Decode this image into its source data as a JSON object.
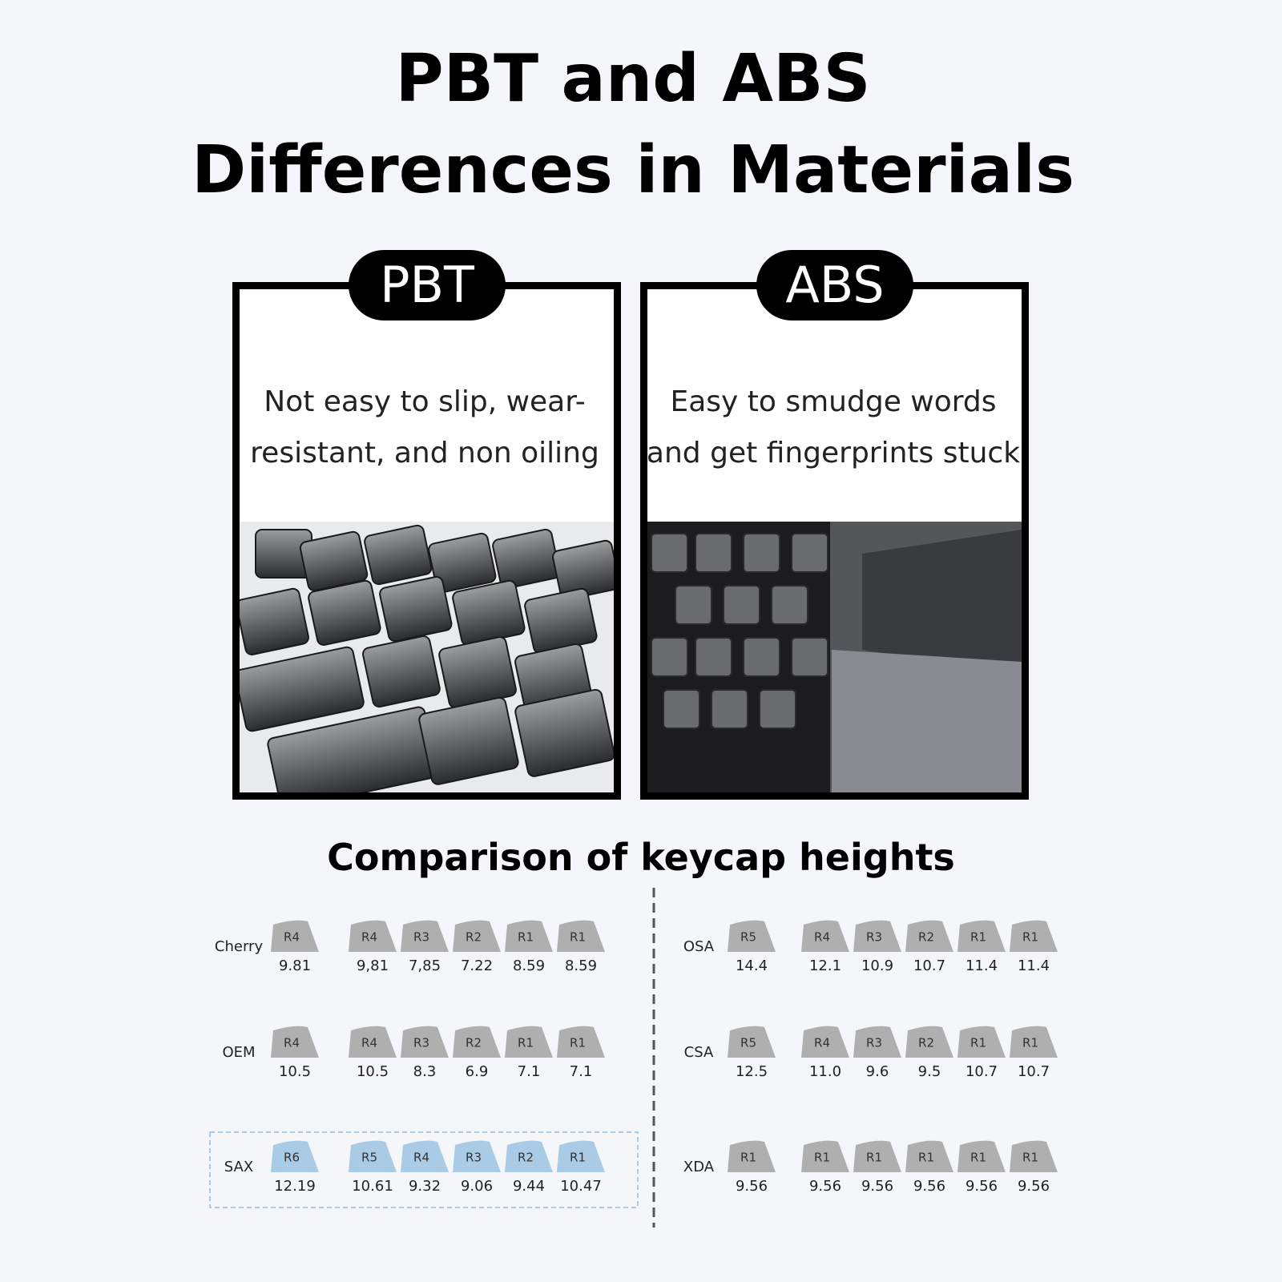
{
  "title": [
    "PBT and ABS",
    "Differences in Materials"
  ],
  "panels": [
    {
      "badge": "PBT",
      "text": "Not easy to slip, wear-resistant, and non oiling"
    },
    {
      "badge": "ABS",
      "text": "Easy to smudge words and get fingerprints stuck"
    }
  ],
  "comparison": {
    "title": "Comparison of keycap heights",
    "profiles": [
      {
        "name": "Cherry",
        "color": "#b0afb0",
        "keys": [
          {
            "row": "R4",
            "height": "9.81"
          },
          {
            "row": "R4",
            "height": "9,81"
          },
          {
            "row": "R3",
            "height": "7,85"
          },
          {
            "row": "R2",
            "height": "7.22"
          },
          {
            "row": "R1",
            "height": "8.59"
          },
          {
            "row": "R1",
            "height": "8.59"
          }
        ]
      },
      {
        "name": "OEM",
        "color": "#b0afb0",
        "keys": [
          {
            "row": "R4",
            "height": "10.5"
          },
          {
            "row": "R4",
            "height": "10.5"
          },
          {
            "row": "R3",
            "height": "8.3"
          },
          {
            "row": "R2",
            "height": "6.9"
          },
          {
            "row": "R1",
            "height": "7.1"
          },
          {
            "row": "R1",
            "height": "7.1"
          }
        ]
      },
      {
        "name": "SAX",
        "color": "#a9cbe6",
        "highlight": true,
        "keys": [
          {
            "row": "R6",
            "height": "12.19"
          },
          {
            "row": "R5",
            "height": "10.61"
          },
          {
            "row": "R4",
            "height": "9.32"
          },
          {
            "row": "R3",
            "height": "9.06"
          },
          {
            "row": "R2",
            "height": "9.44"
          },
          {
            "row": "R1",
            "height": "10.47"
          }
        ]
      },
      {
        "name": "OSA",
        "color": "#b0afb0",
        "keys": [
          {
            "row": "R5",
            "height": "14.4"
          },
          {
            "row": "R4",
            "height": "12.1"
          },
          {
            "row": "R3",
            "height": "10.9"
          },
          {
            "row": "R2",
            "height": "10.7"
          },
          {
            "row": "R1",
            "height": "11.4"
          },
          {
            "row": "R1",
            "height": "11.4"
          }
        ]
      },
      {
        "name": "CSA",
        "color": "#b0afb0",
        "keys": [
          {
            "row": "R5",
            "height": "12.5"
          },
          {
            "row": "R4",
            "height": "11.0"
          },
          {
            "row": "R3",
            "height": "9.6"
          },
          {
            "row": "R2",
            "height": "9.5"
          },
          {
            "row": "R1",
            "height": "10.7"
          },
          {
            "row": "R1",
            "height": "10.7"
          }
        ]
      },
      {
        "name": "XDA",
        "color": "#b0afb0",
        "keys": [
          {
            "row": "R1",
            "height": "9.56"
          },
          {
            "row": "R1",
            "height": "9.56"
          },
          {
            "row": "R1",
            "height": "9.56"
          },
          {
            "row": "R1",
            "height": "9.56"
          },
          {
            "row": "R1",
            "height": "9.56"
          },
          {
            "row": "R1",
            "height": "9.56"
          }
        ]
      }
    ]
  }
}
